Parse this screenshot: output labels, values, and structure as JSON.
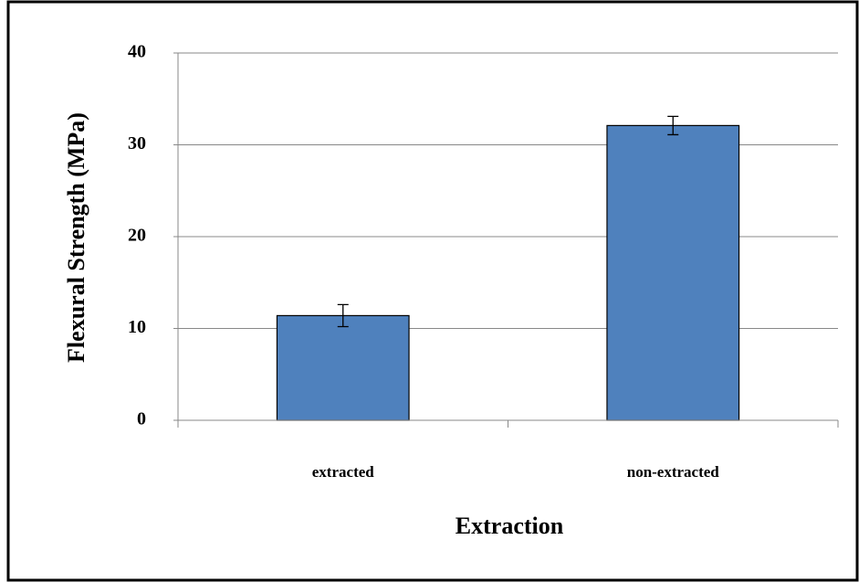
{
  "chart_data": {
    "type": "bar",
    "x_label": "Extraction",
    "y_label": "Flexural  Strength (MPa)",
    "categories": [
      "extracted",
      "non-extracted"
    ],
    "values": [
      11.4,
      32.1
    ],
    "errors": [
      1.2,
      1.0
    ],
    "color": "#4f81bd",
    "ylim": [
      0,
      40
    ],
    "yticks": [
      0,
      10,
      20,
      30,
      40
    ],
    "grid": true
  }
}
